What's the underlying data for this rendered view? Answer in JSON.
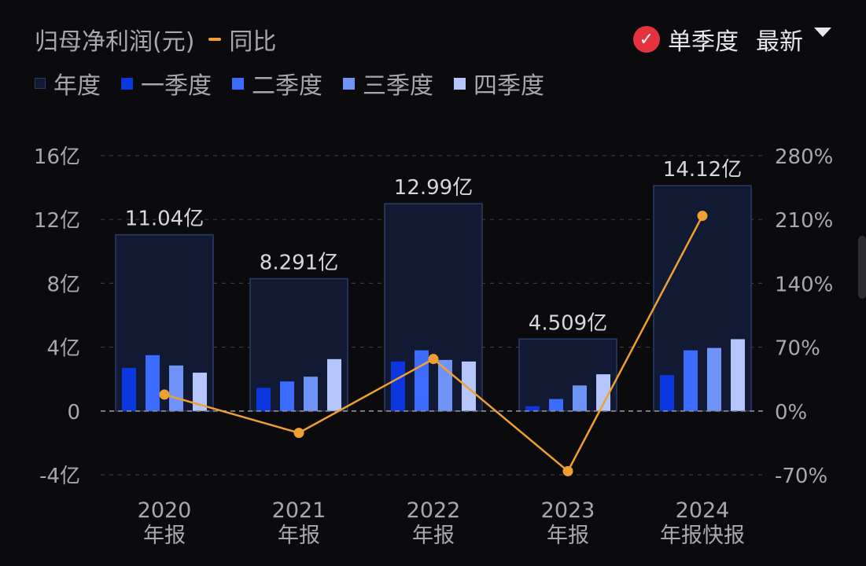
{
  "header": {
    "title": "归母净利润(元)",
    "yoy_label": "同比",
    "toggle_label": "单季度",
    "toggle_checked": true,
    "period_select": "最新"
  },
  "legend": [
    {
      "label": "年度",
      "color": "#121a33"
    },
    {
      "label": "一季度",
      "color": "#0a37e0"
    },
    {
      "label": "二季度",
      "color": "#3c6cff"
    },
    {
      "label": "三季度",
      "color": "#6f93f6"
    },
    {
      "label": "四季度",
      "color": "#b4c6fb"
    }
  ],
  "chart_data": {
    "type": "bar",
    "categories": [
      [
        "2020",
        "年报"
      ],
      [
        "2021",
        "年报"
      ],
      [
        "2022",
        "年报"
      ],
      [
        "2023",
        "年报"
      ],
      [
        "2024",
        "年报快报"
      ]
    ],
    "series": [
      {
        "name": "年度",
        "values": [
          11.04,
          8.291,
          12.99,
          4.509,
          14.12
        ],
        "labels": [
          "11.04亿",
          "8.291亿",
          "12.99亿",
          "4.509亿",
          "14.12亿"
        ]
      },
      {
        "name": "一季度",
        "values": [
          2.7,
          1.45,
          3.1,
          0.3,
          2.25
        ]
      },
      {
        "name": "二季度",
        "values": [
          3.5,
          1.85,
          3.8,
          0.75,
          3.8
        ]
      },
      {
        "name": "三季度",
        "values": [
          2.85,
          2.15,
          3.2,
          1.6,
          3.95
        ]
      },
      {
        "name": "四季度",
        "values": [
          2.4,
          3.25,
          3.1,
          2.3,
          4.5
        ]
      }
    ],
    "yoy": {
      "name": "同比",
      "values": [
        18,
        -24,
        57,
        -66,
        214
      ]
    },
    "y_left": {
      "ticks": [
        16,
        12,
        8,
        4,
        0,
        -4
      ],
      "tick_labels": [
        "16亿",
        "12亿",
        "8亿",
        "4亿",
        "0",
        "-4亿"
      ],
      "range": [
        -4,
        16
      ]
    },
    "y_right": {
      "ticks": [
        280,
        210,
        140,
        70,
        0,
        -70
      ],
      "tick_labels": [
        "280%",
        "210%",
        "140%",
        "70%",
        "0%",
        "-70%"
      ],
      "range": [
        -70,
        280
      ]
    },
    "grid": true,
    "colors": {
      "annual_fill": "#121a33",
      "annual_stroke": "#2a3b6a",
      "q1": "#0a37e0",
      "q2": "#3c6cff",
      "q3": "#6f93f6",
      "q4": "#b4c6fb",
      "yoy": "#f0a030"
    }
  }
}
